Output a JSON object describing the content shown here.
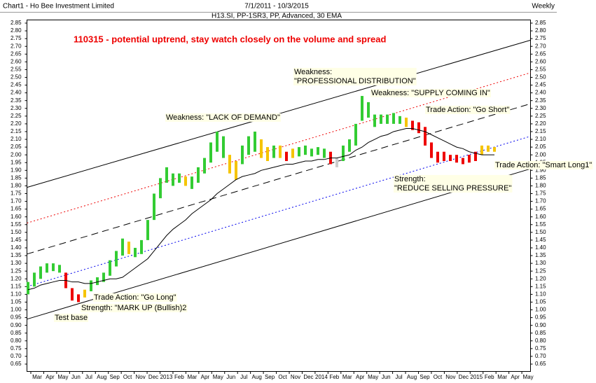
{
  "chart_data": {
    "type": "range-bar",
    "header": {
      "left": "Chart1 - Ho Bee Investment Limited",
      "center": "7/1/2011 - 10/3/2015",
      "right": "Weekly"
    },
    "subtitle": "H13.SI, PP-1SR3, PP, Advanced, 30 EMA",
    "title": "110315 - potential uptrend, stay watch closely on the volume and spread",
    "x_labels": [
      "Mar",
      "Apr",
      "May",
      "Jun",
      "Jul",
      "Aug",
      "Sep",
      "Oct",
      "Nov",
      "Dec",
      "2013",
      "Feb",
      "Mar",
      "Apr",
      "May",
      "Jun",
      "Jul",
      "Aug",
      "Sep",
      "Oct",
      "Nov",
      "Dec",
      "2014",
      "Feb",
      "Mar",
      "Apr",
      "May",
      "Jun",
      "Jul",
      "Aug",
      "Sep",
      "Oct",
      "Nov",
      "Dec",
      "2015",
      "Feb",
      "Mar",
      "Apr",
      "May"
    ],
    "ylim": [
      0.65,
      2.85
    ],
    "yticks": [
      0.65,
      {
        "value": 0.7,
        "label": "0.70"
      },
      0.75,
      {
        "value": 0.8,
        "label": "0.80"
      },
      0.85,
      {
        "value": 0.9,
        "label": "0.90"
      },
      0.95,
      {
        "value": 1.0,
        "label": "1.00"
      },
      1.05,
      {
        "value": 1.1,
        "label": "1.10"
      },
      1.15,
      {
        "value": 1.2,
        "label": "1.20"
      },
      1.25,
      {
        "value": 1.3,
        "label": "1.30"
      },
      1.35,
      {
        "value": 1.4,
        "label": "1.40"
      },
      1.45,
      {
        "value": 1.5,
        "label": "1.50"
      },
      1.55,
      {
        "value": 1.6,
        "label": "1.60"
      },
      1.65,
      {
        "value": 1.7,
        "label": "1.70"
      },
      1.75,
      {
        "value": 1.8,
        "label": "1.80"
      },
      1.85,
      {
        "value": 1.9,
        "label": "1.90"
      },
      1.95,
      {
        "value": 2.0,
        "label": "2.00"
      },
      2.05,
      {
        "value": 2.1,
        "label": "2.10"
      },
      2.15,
      {
        "value": 2.2,
        "label": "2.20"
      },
      2.25,
      {
        "value": 2.3,
        "label": "2.30"
      },
      2.35,
      {
        "value": 2.4,
        "label": "2.40"
      },
      2.45,
      {
        "value": 2.5,
        "label": "2.50"
      },
      2.55,
      {
        "value": 2.6,
        "label": "2.60"
      },
      2.65,
      {
        "value": 2.7,
        "label": "2.70"
      },
      2.75,
      {
        "value": 2.8,
        "label": "2.80"
      },
      2.85
    ],
    "lows": [
      1.1,
      1.15,
      1.2,
      1.24,
      1.25,
      1.24,
      1.14,
      1.06,
      1.05,
      1.08,
      1.12,
      1.16,
      1.18,
      1.22,
      1.28,
      1.35,
      1.36,
      1.34,
      1.36,
      1.45,
      1.58,
      1.72,
      1.82,
      1.8,
      1.82,
      1.8,
      1.78,
      1.82,
      1.88,
      1.95,
      2.02,
      1.98,
      1.88,
      1.84,
      1.94,
      2.0,
      2.02,
      1.98,
      1.96,
      1.98,
      1.98,
      1.96,
      1.98,
      1.99,
      2.0,
      1.99,
      2.0,
      1.98,
      1.94,
      1.92,
      1.96,
      2.02,
      2.06,
      2.22,
      2.24,
      2.18,
      2.2,
      2.2,
      2.2,
      2.2,
      2.18,
      2.16,
      2.14,
      2.06,
      1.98,
      1.95,
      1.96,
      1.96,
      1.95,
      1.94,
      1.95,
      1.96,
      2.0,
      2.02,
      2.02
    ],
    "highs": [
      1.18,
      1.24,
      1.28,
      1.3,
      1.3,
      1.29,
      1.24,
      1.14,
      1.1,
      1.13,
      1.19,
      1.21,
      1.24,
      1.32,
      1.38,
      1.46,
      1.44,
      1.4,
      1.45,
      1.58,
      1.75,
      1.85,
      1.92,
      1.88,
      1.88,
      1.86,
      1.86,
      1.92,
      1.98,
      2.08,
      2.15,
      2.12,
      2.0,
      1.96,
      2.06,
      2.12,
      2.15,
      2.1,
      2.05,
      2.06,
      2.06,
      2.02,
      2.04,
      2.05,
      2.06,
      2.04,
      2.05,
      2.04,
      2.02,
      1.98,
      2.06,
      2.1,
      2.2,
      2.38,
      2.34,
      2.26,
      2.26,
      2.26,
      2.27,
      2.25,
      2.24,
      2.22,
      2.21,
      2.18,
      2.08,
      2.02,
      2.02,
      2.0,
      2.0,
      1.98,
      2.0,
      2.02,
      2.06,
      2.06,
      2.05
    ],
    "colors": [
      "#33cc33",
      "#33cc33",
      "#33cc33",
      "#33cc33",
      "#33cc33",
      "#33cc33",
      "#ee0000",
      "#ee0000",
      "#ee0000",
      "#f5c400",
      "#33cc33",
      "#33cc33",
      "#33cc33",
      "#33cc33",
      "#33cc33",
      "#33cc33",
      "#f5c400",
      "#33cc33",
      "#33cc33",
      "#33cc33",
      "#33cc33",
      "#33cc33",
      "#33cc33",
      "#33cc33",
      "#33cc33",
      "#f5c400",
      "#33cc33",
      "#33cc33",
      "#33cc33",
      "#33cc33",
      "#33cc33",
      "#33cc33",
      "#f5c400",
      "#f5c400",
      "#33cc33",
      "#33cc33",
      "#33cc33",
      "#f5c400",
      "#f5c400",
      "#33cc33",
      "#f5c400",
      "#ee0000",
      "#f5c400",
      "#33cc33",
      "#33cc33",
      "#33cc33",
      "#33cc33",
      "#33cc33",
      "#ee0000",
      "#cccccc",
      "#33cc33",
      "#33cc33",
      "#33cc33",
      "#33cc33",
      "#33cc33",
      "#33cc33",
      "#33cc33",
      "#33cc33",
      "#33cc33",
      "#33cc33",
      "#f5c400",
      "#ee0000",
      "#ee0000",
      "#ee0000",
      "#ee0000",
      "#ee0000",
      "#ee0000",
      "#ee0000",
      "#ee0000",
      "#ee0000",
      "#ee0000",
      "#ee0000",
      "#f5c400",
      "#f5c400",
      "#f5c400"
    ],
    "ema": [
      1.13,
      1.14,
      1.16,
      1.17,
      1.18,
      1.19,
      1.19,
      1.18,
      1.18,
      1.17,
      1.17,
      1.18,
      1.19,
      1.2,
      1.2,
      1.21,
      1.24,
      1.27,
      1.3,
      1.33,
      1.38,
      1.43,
      1.48,
      1.52,
      1.55,
      1.58,
      1.62,
      1.65,
      1.68,
      1.71,
      1.75,
      1.78,
      1.81,
      1.84,
      1.86,
      1.87,
      1.88,
      1.9,
      1.91,
      1.92,
      1.93,
      1.94,
      1.94,
      1.95,
      1.96,
      1.96,
      1.97,
      1.97,
      1.98,
      1.98,
      1.99,
      2.0,
      2.03,
      2.05,
      2.08,
      2.1,
      2.12,
      2.13,
      2.15,
      2.16,
      2.17,
      2.17,
      2.16,
      2.15,
      2.13,
      2.11,
      2.09,
      2.07,
      2.05,
      2.04,
      2.02,
      2.01,
      2.0,
      2.0,
      2.0
    ],
    "ema_color": "#000000",
    "channels": [
      {
        "color": "#000000",
        "dash": "none",
        "start": 1.79,
        "end": 2.74
      },
      {
        "color": "#ee0000",
        "dash": "2,3",
        "start": 1.56,
        "end": 2.53
      },
      {
        "color": "#000000",
        "dash": "10,6",
        "start": 1.36,
        "end": 2.33
      },
      {
        "color": "#0000ee",
        "dash": "2,3",
        "start": 1.15,
        "end": 2.12
      },
      {
        "color": "#000000",
        "dash": "none",
        "start": 0.94,
        "end": 1.91
      }
    ],
    "annotations": [
      [
        "Weakness:",
        "\"PROFESSIONAL DISTRIBUTION\""
      ],
      [
        "Weakness: \"SUPPLY COMING IN\""
      ],
      [
        "Trade Action: \"Go Short\""
      ],
      [
        "Weakness: \"LACK OF DEMAND\""
      ],
      [
        "Trade Action: \"Smart Long1\""
      ],
      [
        "Strength:",
        "\"REDUCE SELLING PRESSURE\""
      ],
      [
        "Trade Action: \"Go Long\""
      ],
      [
        "Strength: \"MARK UP (Bullish)2"
      ],
      [
        "Test base"
      ]
    ]
  }
}
